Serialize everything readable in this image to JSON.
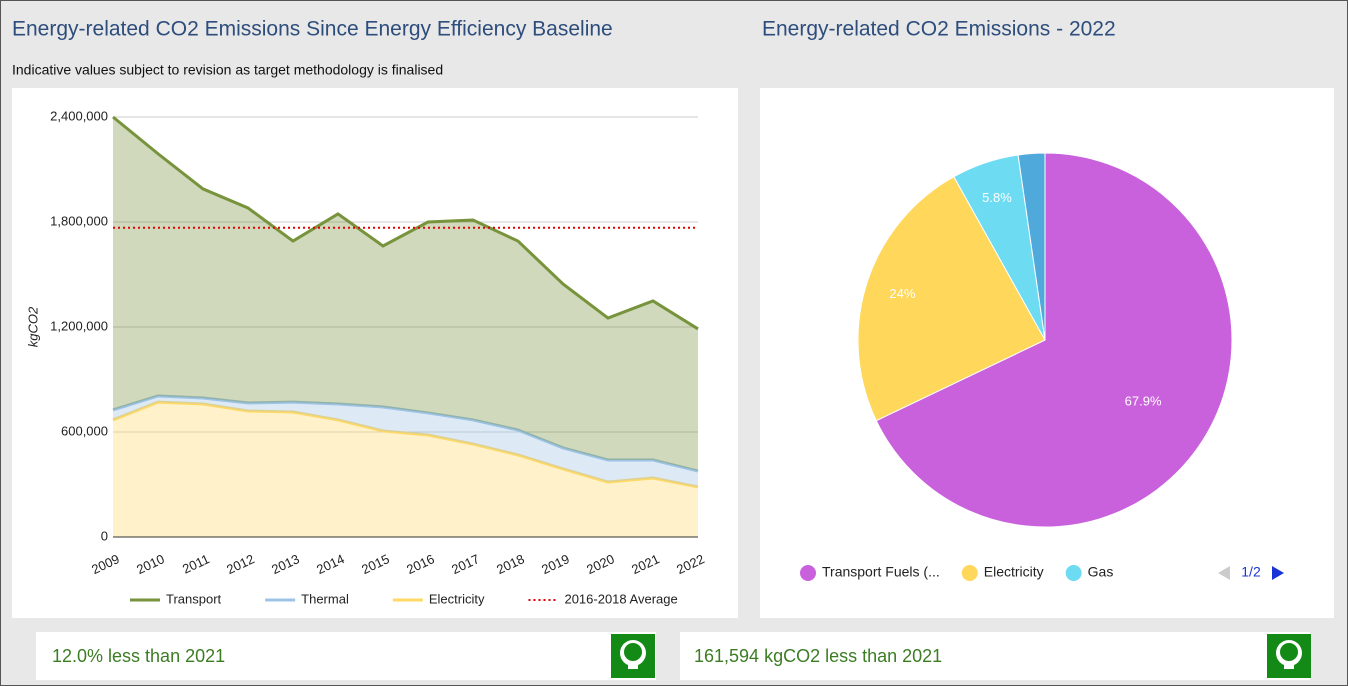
{
  "chart_data": [
    {
      "type": "stacked-area",
      "title": "Energy-related CO2 Emissions Since Energy Efficiency Baseline",
      "subtitle": "Indicative values subject to revision as target methodology is finalised",
      "y_label": "kgCO2",
      "categories": [
        "2009",
        "2010",
        "2011",
        "2012",
        "2013",
        "2014",
        "2015",
        "2016",
        "2017",
        "2018",
        "2019",
        "2020",
        "2021",
        "2022"
      ],
      "series": [
        {
          "name": "Electricity",
          "color": "#ffd966",
          "values": [
            669000,
            771000,
            760000,
            720000,
            714000,
            669000,
            606000,
            583000,
            531000,
            469000,
            389000,
            314000,
            337000,
            286000
          ]
        },
        {
          "name": "Thermal",
          "color": "#9dc3e6",
          "values": [
            57000,
            35000,
            34000,
            46000,
            57000,
            91000,
            137000,
            126000,
            138000,
            142000,
            120000,
            126000,
            103000,
            91000
          ]
        },
        {
          "name": "Transport",
          "color": "#77933c",
          "values": [
            1674000,
            1384000,
            1195000,
            1114000,
            920000,
            1086000,
            920000,
            1091000,
            1142000,
            1080000,
            937000,
            811000,
            909000,
            812000
          ]
        }
      ],
      "reference_lines": [
        {
          "name": "2016-2018 Average",
          "value": 1767000,
          "color": "#e00000"
        }
      ],
      "ylim": [
        0,
        2400000
      ],
      "yticks": [
        0,
        {
          "value": 600000,
          "label": "600,000"
        },
        {
          "value": 1200000,
          "label": "1,200,000"
        },
        {
          "value": 1800000,
          "label": "1,800,000"
        },
        {
          "value": 2400000,
          "label": "2,400,000"
        }
      ],
      "grid": true
    },
    {
      "type": "pie",
      "title": "Energy-related CO2 Emissions - 2022",
      "categories": [
        "Transport Fuels (...",
        "Electricity",
        "Gas",
        null
      ],
      "values": [
        67.9,
        24,
        5.8,
        2.3
      ],
      "value_labels": [
        "67.9%",
        "24%",
        "5.8%",
        null
      ],
      "colors": [
        "#c961dc",
        "#ffd75a",
        "#6ddcf3",
        "#4fa9db"
      ],
      "legend_page": "1/2"
    }
  ],
  "cards": [
    {
      "text": "12.0% less than 2021"
    },
    {
      "text": "161,594 kgCO2 less than 2021"
    }
  ]
}
